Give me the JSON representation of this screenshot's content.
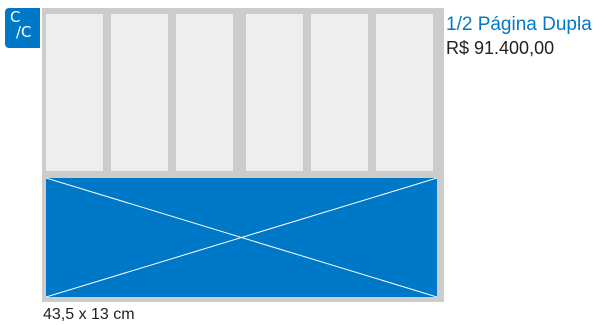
{
  "badge": {
    "top": "C",
    "bottom": "/C"
  },
  "ad": {
    "title": "1/2 Página Dupla",
    "price": "R$ 91.400,00",
    "dimensions": "43,5 x 13 cm"
  },
  "colors": {
    "accent": "#0078c8",
    "frame": "#cccccc",
    "column": "#eeeeee"
  }
}
